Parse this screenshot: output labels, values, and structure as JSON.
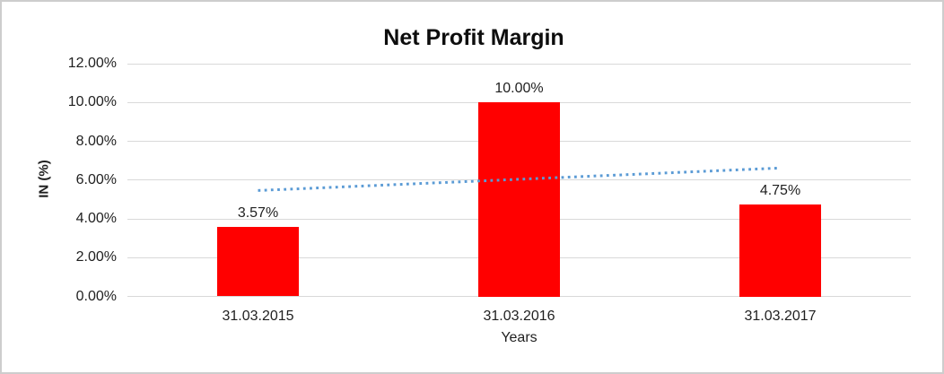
{
  "window": {
    "background": "#ffffff",
    "border_color": "#cdcdcd"
  },
  "chart_data": {
    "type": "bar",
    "title": "Net Profit Margin",
    "categories": [
      "31.03.2015",
      "31.03.2016",
      "31.03.2017"
    ],
    "values": [
      3.57,
      10.0,
      4.75
    ],
    "data_labels": [
      "3.57%",
      "10.00%",
      "4.75%"
    ],
    "xlabel": "Years",
    "ylabel": "IN (%)",
    "ylim": [
      0,
      12
    ],
    "ytick_step": 2,
    "ytick_labels": [
      "0.00%",
      "2.00%",
      "4.00%",
      "6.00%",
      "8.00%",
      "10.00%",
      "12.00%"
    ],
    "grid": true,
    "legend": "none",
    "bar_color": "#ff0000",
    "gridline_color": "#d9d9d9",
    "text_color": "#1f1f1f",
    "trendline": {
      "type": "linear",
      "style": "dotted",
      "color": "#5b9bd5",
      "start_value": 5.46,
      "end_value": 6.62
    }
  }
}
